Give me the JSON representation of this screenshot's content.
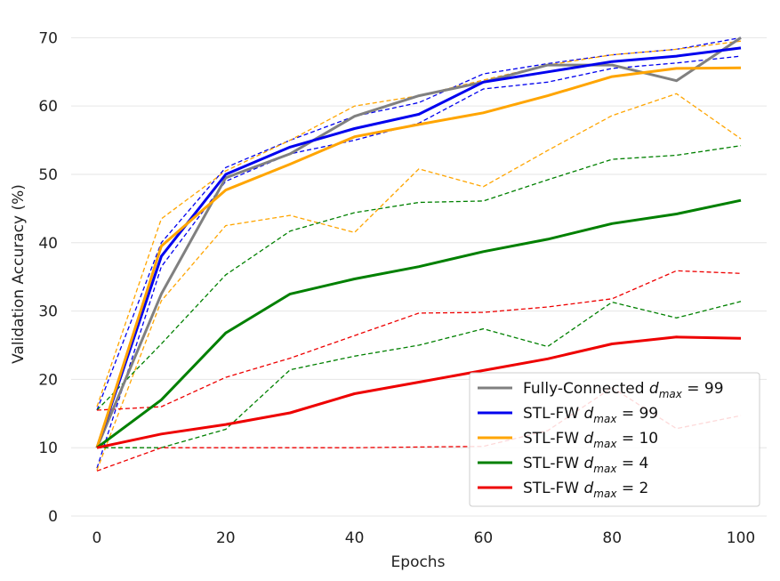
{
  "chart_data": {
    "type": "line",
    "xlabel": "Epochs",
    "ylabel": "Validation Accuracy (%)",
    "xlim": [
      -4,
      104
    ],
    "ylim": [
      0,
      72
    ],
    "xticks": [
      0,
      20,
      40,
      60,
      80,
      100
    ],
    "yticks": [
      0,
      10,
      20,
      30,
      40,
      50,
      60,
      70
    ],
    "grid": "horizontal",
    "legend_position": "lower-right",
    "x": [
      0,
      10,
      20,
      30,
      40,
      50,
      60,
      70,
      80,
      90,
      100
    ],
    "series": [
      {
        "name": "Fully-Connected",
        "legend_suffix": "= 99",
        "color": "#808080",
        "mean": [
          10,
          32.5,
          49.5,
          53,
          58.5,
          61.5,
          63.5,
          66,
          66,
          63.7,
          70
        ],
        "upper": null,
        "lower": null
      },
      {
        "name": "STL-FW",
        "legend_suffix": "= 99",
        "color": "#0000ee",
        "mean": [
          10,
          38,
          50,
          54,
          56.7,
          58.8,
          63.5,
          65,
          66.5,
          67.3,
          68.5
        ],
        "upper": [
          15.5,
          40,
          51,
          55,
          58.5,
          60.5,
          64.7,
          66.2,
          67.5,
          68.3,
          70
        ],
        "lower": [
          7,
          36.5,
          49,
          53,
          55,
          57.5,
          62.5,
          63.5,
          65.5,
          66.3,
          67.3
        ]
      },
      {
        "name": "STL-FW",
        "legend_suffix": "= 10",
        "color": "#ffa500",
        "mean": [
          10,
          39.5,
          47.7,
          51.5,
          55.5,
          57.3,
          59,
          61.5,
          64.3,
          65.5,
          65.6
        ],
        "upper": [
          16,
          43.5,
          50.5,
          55,
          60,
          61.5,
          63.8,
          66,
          67.5,
          68.3,
          69.5
        ],
        "lower": [
          6.7,
          31.5,
          42.5,
          44,
          41.5,
          50.8,
          48.2,
          53.5,
          58.6,
          61.8,
          55.2
        ]
      },
      {
        "name": "STL-FW",
        "legend_suffix": "= 4",
        "color": "#008000",
        "mean": [
          10,
          17,
          26.8,
          32.5,
          34.7,
          36.5,
          38.7,
          40.5,
          42.8,
          44.2,
          46.2
        ],
        "upper": [
          15.5,
          25.2,
          35.3,
          41.7,
          44.4,
          45.9,
          46.1,
          49.2,
          52.2,
          52.8,
          54.2
        ],
        "lower": [
          10,
          10,
          12.7,
          21.4,
          23.4,
          25,
          27.4,
          24.8,
          31.3,
          29,
          31.4
        ]
      },
      {
        "name": "STL-FW",
        "legend_suffix": "= 2",
        "color": "#ee0000",
        "mean": [
          10,
          12,
          13.4,
          15.1,
          17.9,
          19.6,
          21.3,
          23,
          25.2,
          26.2,
          26
        ],
        "upper": [
          15.5,
          16,
          20.3,
          23.1,
          26.4,
          29.7,
          29.8,
          30.6,
          31.8,
          35.9,
          35.5
        ],
        "lower": [
          6.6,
          10,
          10,
          10,
          10,
          10.1,
          10.2,
          12.5,
          18.8,
          12.8,
          14.7
        ]
      }
    ],
    "legend_subscript": "max",
    "legend_variable": "d"
  }
}
